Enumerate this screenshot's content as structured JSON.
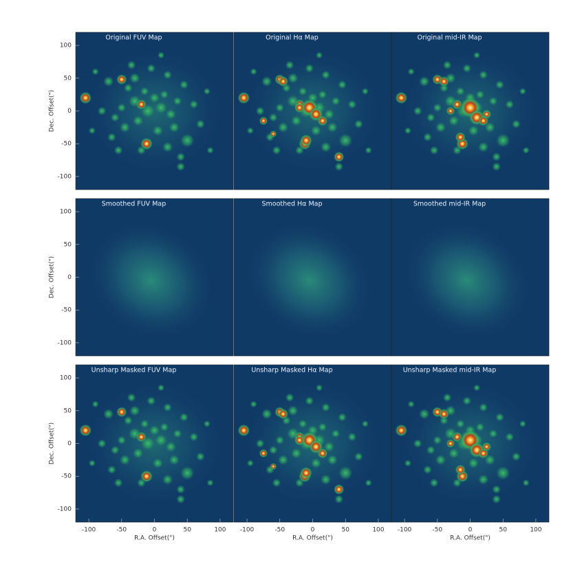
{
  "chart_data": [
    {
      "type": "image",
      "title": "Original FUV Map",
      "ylabel": "Dec. Offset(\")",
      "ylim": [
        -120,
        120
      ],
      "yticks": [
        -100,
        -50,
        0,
        50,
        100
      ]
    },
    {
      "type": "image",
      "title": "Original Hα Map"
    },
    {
      "type": "image",
      "title": "Original mid-IR Map"
    },
    {
      "type": "image",
      "title": "Smoothed FUV Map",
      "ylabel": "Dec. Offset(\")",
      "ylim": [
        -120,
        120
      ],
      "yticks": [
        -100,
        -50,
        0,
        50,
        100
      ]
    },
    {
      "type": "image",
      "title": "Smoothed Hα Map"
    },
    {
      "type": "image",
      "title": "Smoothed mid-IR Map"
    },
    {
      "type": "image",
      "title": "Unsharp Masked FUV Map",
      "ylabel": "Dec. Offset(\")",
      "ylim": [
        -120,
        120
      ],
      "yticks": [
        -100,
        -50,
        0,
        50,
        100
      ],
      "xlabel": "R.A. Offset(\")",
      "xlim": [
        -120,
        120
      ],
      "xticks": [
        -100,
        -50,
        0,
        50,
        100
      ]
    },
    {
      "type": "image",
      "title": "Unsharp Masked Hα Map",
      "xlabel": "R.A. Offset(\")",
      "xlim": [
        -120,
        120
      ],
      "xticks": [
        -100,
        -50,
        0,
        50,
        100
      ]
    },
    {
      "type": "image",
      "title": "Unsharp Masked mid-IR Map",
      "xlabel": "R.A. Offset(\")",
      "xlim": [
        -120,
        120
      ],
      "xticks": [
        -100,
        -50,
        0,
        50,
        100
      ]
    }
  ]
}
